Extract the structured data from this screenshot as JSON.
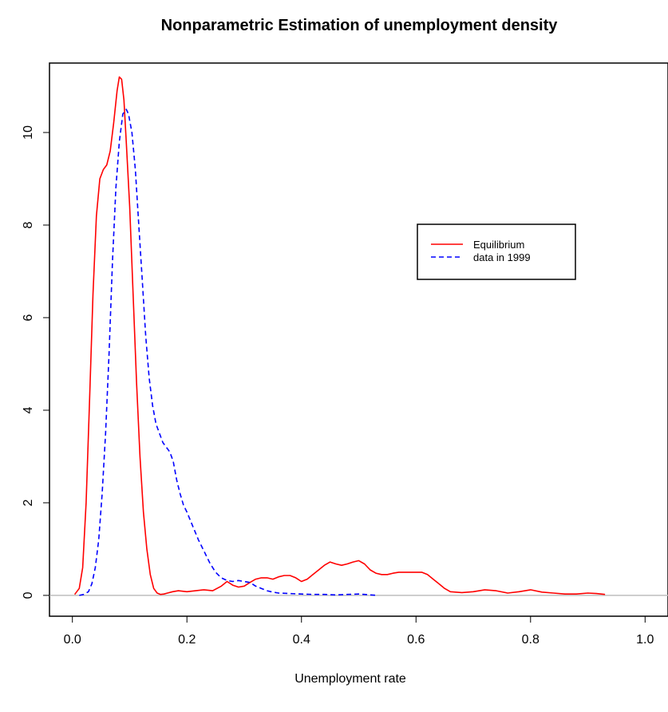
{
  "chart_data": {
    "type": "line",
    "title": "Nonparametric Estimation of unemployment density",
    "xlabel": "Unemployment rate",
    "ylabel": "",
    "xlim": [
      -0.04,
      1.04
    ],
    "ylim": [
      -0.45,
      11.5
    ],
    "xticks": [
      0.0,
      0.2,
      0.4,
      0.6,
      0.8,
      1.0
    ],
    "xtick_labels": [
      "0.0",
      "0.2",
      "0.4",
      "0.6",
      "0.8",
      "1.0"
    ],
    "yticks": [
      0,
      2,
      4,
      6,
      8,
      10
    ],
    "ytick_labels": [
      "0",
      "2",
      "4",
      "6",
      "8",
      "10"
    ],
    "hline": {
      "y": 0,
      "color": "#bebebe"
    },
    "legend": {
      "position": "center-right",
      "entries": [
        "Equilibrium",
        "data in 1999"
      ]
    },
    "series": [
      {
        "name": "Equilibrium",
        "color": "#ff0000",
        "linestyle": "solid",
        "x": [
          0.004,
          0.012,
          0.018,
          0.024,
          0.03,
          0.036,
          0.042,
          0.048,
          0.054,
          0.06,
          0.066,
          0.072,
          0.078,
          0.082,
          0.086,
          0.09,
          0.094,
          0.1,
          0.106,
          0.112,
          0.118,
          0.124,
          0.13,
          0.136,
          0.142,
          0.148,
          0.154,
          0.16,
          0.166,
          0.175,
          0.185,
          0.2,
          0.215,
          0.23,
          0.245,
          0.26,
          0.27,
          0.28,
          0.29,
          0.3,
          0.31,
          0.32,
          0.33,
          0.34,
          0.35,
          0.36,
          0.37,
          0.38,
          0.39,
          0.4,
          0.41,
          0.42,
          0.43,
          0.44,
          0.45,
          0.46,
          0.47,
          0.48,
          0.49,
          0.5,
          0.51,
          0.52,
          0.53,
          0.54,
          0.55,
          0.56,
          0.57,
          0.58,
          0.59,
          0.6,
          0.61,
          0.62,
          0.63,
          0.64,
          0.65,
          0.66,
          0.68,
          0.7,
          0.72,
          0.74,
          0.76,
          0.78,
          0.8,
          0.82,
          0.84,
          0.86,
          0.88,
          0.9,
          0.915,
          0.93
        ],
        "y": [
          0.02,
          0.15,
          0.6,
          2.0,
          4.2,
          6.5,
          8.2,
          9.0,
          9.2,
          9.3,
          9.6,
          10.2,
          10.9,
          11.2,
          11.15,
          10.7,
          9.8,
          8.4,
          6.5,
          4.6,
          3.0,
          1.8,
          1.0,
          0.45,
          0.15,
          0.05,
          0.02,
          0.03,
          0.05,
          0.08,
          0.1,
          0.08,
          0.1,
          0.12,
          0.1,
          0.2,
          0.3,
          0.22,
          0.18,
          0.2,
          0.28,
          0.35,
          0.38,
          0.38,
          0.35,
          0.4,
          0.43,
          0.43,
          0.38,
          0.3,
          0.35,
          0.45,
          0.55,
          0.65,
          0.72,
          0.68,
          0.65,
          0.68,
          0.72,
          0.75,
          0.68,
          0.55,
          0.48,
          0.45,
          0.45,
          0.48,
          0.5,
          0.5,
          0.5,
          0.5,
          0.5,
          0.45,
          0.35,
          0.25,
          0.15,
          0.08,
          0.06,
          0.08,
          0.12,
          0.1,
          0.05,
          0.08,
          0.12,
          0.07,
          0.05,
          0.03,
          0.03,
          0.05,
          0.04,
          0.02
        ]
      },
      {
        "name": "data in 1999",
        "color": "#0000ff",
        "linestyle": "dashed",
        "x": [
          0.012,
          0.02,
          0.028,
          0.034,
          0.04,
          0.046,
          0.052,
          0.058,
          0.064,
          0.07,
          0.076,
          0.082,
          0.088,
          0.094,
          0.098,
          0.104,
          0.11,
          0.116,
          0.122,
          0.128,
          0.134,
          0.14,
          0.146,
          0.152,
          0.158,
          0.164,
          0.17,
          0.176,
          0.182,
          0.188,
          0.194,
          0.2,
          0.21,
          0.22,
          0.23,
          0.24,
          0.25,
          0.26,
          0.27,
          0.28,
          0.29,
          0.3,
          0.31,
          0.32,
          0.33,
          0.34,
          0.35,
          0.36,
          0.38,
          0.4,
          0.42,
          0.44,
          0.46,
          0.48,
          0.5,
          0.51,
          0.52,
          0.533
        ],
        "y": [
          0.0,
          0.02,
          0.08,
          0.25,
          0.6,
          1.2,
          2.2,
          3.5,
          5.2,
          7.2,
          8.8,
          9.8,
          10.4,
          10.5,
          10.4,
          10.0,
          9.2,
          8.0,
          6.8,
          5.6,
          4.7,
          4.1,
          3.7,
          3.5,
          3.3,
          3.2,
          3.1,
          2.9,
          2.5,
          2.2,
          1.95,
          1.8,
          1.5,
          1.2,
          0.95,
          0.7,
          0.5,
          0.38,
          0.32,
          0.3,
          0.32,
          0.3,
          0.28,
          0.2,
          0.15,
          0.1,
          0.07,
          0.05,
          0.04,
          0.03,
          0.02,
          0.02,
          0.01,
          0.02,
          0.03,
          0.02,
          0.01,
          0.0
        ]
      }
    ]
  }
}
